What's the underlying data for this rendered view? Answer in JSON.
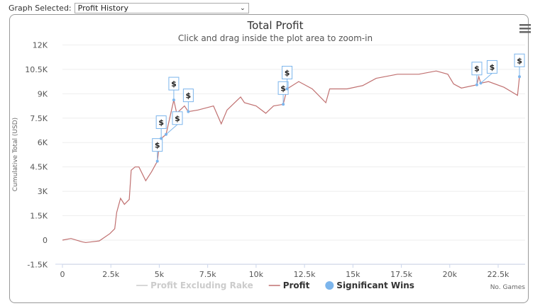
{
  "selector": {
    "label": "Graph Selected:",
    "value": "Profit History"
  },
  "menu_icon": "hamburger-menu-icon",
  "chart_data": {
    "type": "line",
    "title": "Total Profit",
    "subtitle": "Click and drag inside the plot area to zoom-in",
    "xlabel": "No. Games",
    "ylabel": "Cumulative Total (USD)",
    "xlim": [
      0,
      24000
    ],
    "ylim": [
      -1500,
      12000
    ],
    "xticks": [
      0,
      2500,
      5000,
      7500,
      10000,
      12500,
      15000,
      17500,
      20000,
      22500
    ],
    "xtick_labels": [
      "0",
      "2.5k",
      "5k",
      "7.5k",
      "10k",
      "12.5k",
      "15k",
      "17.5k",
      "20k",
      "22.5k"
    ],
    "yticks": [
      -1500,
      0,
      1500,
      3000,
      4500,
      6000,
      7500,
      9000,
      10500,
      12000
    ],
    "ytick_labels": [
      "-1.5K",
      "0",
      "1.5K",
      "3K",
      "4.5K",
      "6K",
      "7.5K",
      "9K",
      "10.5K",
      "12K"
    ],
    "grid": true,
    "legend_position": "bottom",
    "legend": [
      {
        "name": "Profit Excluding Rake",
        "color": "#cccccc",
        "hidden": true
      },
      {
        "name": "Profit",
        "color": "#c07070"
      },
      {
        "name": "Significant Wins",
        "color": "#7cb5ec"
      }
    ],
    "series": [
      {
        "name": "Profit",
        "color": "#c07070",
        "x": [
          0,
          440,
          1000,
          1200,
          1900,
          2450,
          2700,
          2800,
          3000,
          3200,
          3450,
          3550,
          3750,
          3950,
          4300,
          4600,
          4900,
          5000,
          5100,
          5350,
          5750,
          5900,
          6300,
          6500,
          7000,
          7800,
          8200,
          8500,
          9200,
          9400,
          10000,
          10500,
          10900,
          11400,
          11600,
          12200,
          12900,
          13600,
          13800,
          14700,
          15500,
          16200,
          17300,
          18400,
          19300,
          19900,
          20200,
          20600,
          21400,
          21500,
          21600,
          22000,
          22800,
          23500,
          23600
        ],
        "y": [
          0,
          100,
          -100,
          -150,
          -50,
          400,
          700,
          1700,
          2570,
          2200,
          2500,
          4300,
          4500,
          4500,
          3650,
          4200,
          4850,
          5850,
          6250,
          6500,
          8620,
          7800,
          8250,
          7900,
          8000,
          8250,
          7150,
          8000,
          8800,
          8450,
          8250,
          7800,
          8250,
          8350,
          9300,
          9750,
          9300,
          8450,
          9300,
          9300,
          9500,
          9950,
          10200,
          10200,
          10400,
          10200,
          9600,
          9350,
          9550,
          10050,
          9650,
          9750,
          9400,
          8900,
          10050
        ]
      }
    ],
    "significant_wins": {
      "label": "$",
      "x": [
        4900,
        5100,
        5350,
        5750,
        6500,
        11400,
        11600,
        21400,
        21600,
        23600
      ]
    }
  }
}
